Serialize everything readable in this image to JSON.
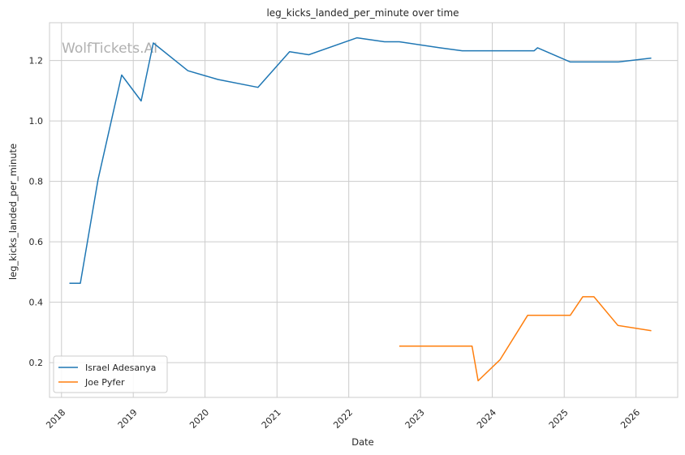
{
  "chart_data": {
    "type": "line",
    "title": "leg_kicks_landed_per_minute over time",
    "xlabel": "Date",
    "ylabel": "leg_kicks_landed_per_minute",
    "watermark": "WolfTickets.AI",
    "x_ticks": [
      "2018",
      "2019",
      "2020",
      "2021",
      "2022",
      "2023",
      "2024",
      "2025",
      "2026"
    ],
    "y_ticks": [
      "0.2",
      "0.4",
      "0.6",
      "0.8",
      "1.0",
      "1.2"
    ],
    "xlim": [
      "2017-11-01",
      "2026-08-01"
    ],
    "ylim": [
      0.085,
      1.325
    ],
    "grid": true,
    "legend_position": "lower-left",
    "series": [
      {
        "name": "Israel Adesanya",
        "color": "#1f77b4",
        "x": [
          "2018-02-10",
          "2018-04-07",
          "2018-07-06",
          "2018-11-03",
          "2019-02-10",
          "2019-04-13",
          "2019-10-06",
          "2020-03-07",
          "2020-09-26",
          "2021-03-06",
          "2021-06-12",
          "2022-02-12",
          "2022-07-02",
          "2022-09-15",
          "2023-04-08",
          "2023-08-01",
          "2024-08-01",
          "2024-08-18",
          "2025-02-01",
          "2025-10-01",
          "2026-03-20"
        ],
        "y": [
          0.463,
          0.463,
          0.806,
          1.152,
          1.066,
          1.258,
          1.166,
          1.137,
          1.111,
          1.229,
          1.219,
          1.275,
          1.262,
          1.262,
          1.242,
          1.232,
          1.232,
          1.242,
          1.195,
          1.195,
          1.208
        ]
      },
      {
        "name": "Joe Pyfer",
        "color": "#ff7f0e",
        "x": [
          "2022-09-15",
          "2023-09-20",
          "2023-10-21",
          "2024-02-10",
          "2024-06-29",
          "2025-02-01",
          "2025-04-05",
          "2025-06-01",
          "2025-10-01",
          "2026-03-20"
        ],
        "y": [
          0.255,
          0.255,
          0.14,
          0.21,
          0.357,
          0.357,
          0.418,
          0.418,
          0.323,
          0.306
        ]
      }
    ]
  }
}
